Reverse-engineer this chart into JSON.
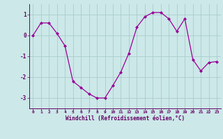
{
  "x": [
    0,
    1,
    2,
    3,
    4,
    5,
    6,
    7,
    8,
    9,
    10,
    11,
    12,
    13,
    14,
    15,
    16,
    17,
    18,
    19,
    20,
    21,
    22,
    23
  ],
  "y": [
    0.0,
    0.6,
    0.6,
    0.1,
    -0.5,
    -2.2,
    -2.5,
    -2.8,
    -3.0,
    -3.0,
    -2.4,
    -1.75,
    -0.85,
    0.4,
    0.9,
    1.1,
    1.1,
    0.8,
    0.2,
    0.8,
    -1.15,
    -1.7,
    -1.3,
    -1.25
  ],
  "line_color": "#990099",
  "marker": "D",
  "marker_size": 2,
  "bg_color": "#cce8e8",
  "grid_color": "#aacccc",
  "xlabel": "Windchill (Refroidissement éolien,°C)",
  "ylim": [
    -3.5,
    1.5
  ],
  "yticks": [
    -3,
    -2,
    -1,
    0,
    1
  ],
  "xlim": [
    -0.5,
    23.5
  ],
  "xticks": [
    0,
    1,
    2,
    3,
    4,
    5,
    6,
    7,
    8,
    9,
    10,
    11,
    12,
    13,
    14,
    15,
    16,
    17,
    18,
    19,
    20,
    21,
    22,
    23
  ]
}
